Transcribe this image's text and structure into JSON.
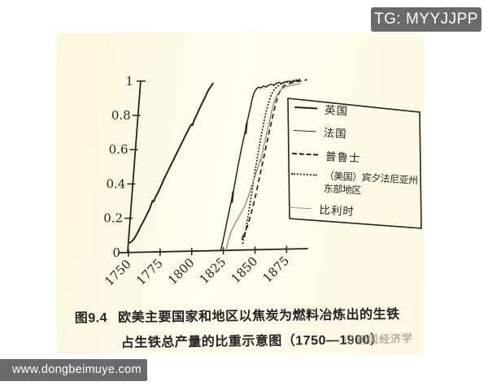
{
  "badge": {
    "text": "TG: MYYJJPP"
  },
  "footer": {
    "url": "www.dongbeimuye.com"
  },
  "watermark": {
    "text": "初闻经济学"
  },
  "caption": {
    "figure_label": "图9.4",
    "line1": "欧美主要国家和地区以焦炭为燃料冶炼出的生铁",
    "line2": "占生铁总产量的比重示意图（1750—1900）"
  },
  "chart_data": {
    "type": "line",
    "title": "图9.4 欧美主要国家和地区以焦炭为燃料冶炼出的生铁占生铁总产量的比重示意图（1750—1900）",
    "xlabel": "",
    "ylabel": "",
    "xlim": [
      1750,
      1895
    ],
    "ylim": [
      0,
      1
    ],
    "grid": false,
    "legend_position": "right",
    "x_ticks": [
      1750,
      1775,
      1800,
      1825,
      1850,
      1875
    ],
    "y_ticks": [
      0,
      0.2,
      0.4,
      0.6,
      0.8,
      1
    ],
    "series": [
      {
        "name": "英国",
        "style": "solid-thick",
        "points": [
          [
            1750,
            0.055
          ],
          [
            1752,
            0.065
          ],
          [
            1754,
            0.085
          ],
          [
            1756,
            0.115
          ],
          [
            1758,
            0.15
          ],
          [
            1760,
            0.18
          ],
          [
            1762,
            0.215
          ],
          [
            1764,
            0.25
          ],
          [
            1765,
            0.275
          ],
          [
            1766,
            0.3
          ],
          [
            1767,
            0.295
          ],
          [
            1768,
            0.32
          ],
          [
            1770,
            0.35
          ],
          [
            1772,
            0.39
          ],
          [
            1774,
            0.43
          ],
          [
            1776,
            0.465
          ],
          [
            1778,
            0.5
          ],
          [
            1780,
            0.535
          ],
          [
            1782,
            0.57
          ],
          [
            1784,
            0.605
          ],
          [
            1786,
            0.64
          ],
          [
            1788,
            0.675
          ],
          [
            1790,
            0.71
          ],
          [
            1792,
            0.74
          ],
          [
            1793,
            0.735
          ],
          [
            1794,
            0.765
          ],
          [
            1796,
            0.8
          ],
          [
            1798,
            0.84
          ],
          [
            1800,
            0.875
          ],
          [
            1802,
            0.91
          ],
          [
            1803,
            0.93
          ],
          [
            1804,
            0.945
          ],
          [
            1805,
            0.955
          ],
          [
            1806,
            0.97
          ],
          [
            1807,
            0.98
          ]
        ]
      },
      {
        "name": "法国",
        "style": "solid",
        "points": [
          [
            1823,
            0
          ],
          [
            1824,
            0.05
          ],
          [
            1825,
            0.1
          ],
          [
            1826,
            0.16
          ],
          [
            1827,
            0.22
          ],
          [
            1828,
            0.27
          ],
          [
            1828.6,
            0.3
          ],
          [
            1828.9,
            0.34
          ],
          [
            1829.2,
            0.28
          ],
          [
            1829.5,
            0.35
          ],
          [
            1830.5,
            0.42
          ],
          [
            1831.5,
            0.49
          ],
          [
            1832.5,
            0.55
          ],
          [
            1833.5,
            0.61
          ],
          [
            1834.5,
            0.66
          ],
          [
            1835.3,
            0.7
          ],
          [
            1835.6,
            0.74
          ],
          [
            1835.9,
            0.68
          ],
          [
            1836.2,
            0.75
          ],
          [
            1837,
            0.79
          ],
          [
            1838,
            0.84
          ],
          [
            1839,
            0.89
          ],
          [
            1840,
            0.92
          ],
          [
            1841.5,
            0.94
          ],
          [
            1843,
            0.95
          ],
          [
            1845,
            0.945
          ],
          [
            1847,
            0.955
          ],
          [
            1849,
            0.95
          ],
          [
            1851,
            0.96
          ],
          [
            1853,
            0.965
          ],
          [
            1855,
            0.958
          ],
          [
            1857,
            0.97
          ],
          [
            1859,
            0.975
          ],
          [
            1861,
            0.968
          ],
          [
            1863,
            0.975
          ],
          [
            1866,
            0.98
          ],
          [
            1869,
            0.976
          ],
          [
            1872,
            0.982
          ],
          [
            1875,
            0.985
          ]
        ]
      },
      {
        "name": "普鲁士",
        "style": "dashed",
        "points": [
          [
            1839,
            0.06
          ],
          [
            1840,
            0.09
          ],
          [
            1840.5,
            0.075
          ],
          [
            1841.5,
            0.11
          ],
          [
            1843,
            0.15
          ],
          [
            1844.5,
            0.2
          ],
          [
            1846,
            0.26
          ],
          [
            1847.5,
            0.33
          ],
          [
            1849,
            0.41
          ],
          [
            1850.5,
            0.49
          ],
          [
            1852,
            0.57
          ],
          [
            1853.5,
            0.65
          ],
          [
            1855,
            0.73
          ],
          [
            1856.5,
            0.8
          ],
          [
            1858,
            0.865
          ],
          [
            1859.5,
            0.91
          ],
          [
            1861,
            0.935
          ],
          [
            1863,
            0.955
          ],
          [
            1866,
            0.965
          ],
          [
            1870,
            0.972
          ],
          [
            1874,
            0.978
          ],
          [
            1878,
            0.983
          ],
          [
            1881,
            0.987
          ]
        ]
      },
      {
        "name": "（美国）宾夕法尼亚州",
        "name2": "东部地区",
        "style": "dotted",
        "points": [
          [
            1840,
            0.04
          ],
          [
            1840.6,
            0.1
          ],
          [
            1841,
            0.075
          ],
          [
            1841.8,
            0.14
          ],
          [
            1842.6,
            0.21
          ],
          [
            1843.5,
            0.29
          ],
          [
            1844.5,
            0.38
          ],
          [
            1845.5,
            0.47
          ],
          [
            1846.5,
            0.55
          ],
          [
            1847.5,
            0.625
          ],
          [
            1848.5,
            0.69
          ],
          [
            1849.5,
            0.75
          ],
          [
            1850.7,
            0.81
          ],
          [
            1852,
            0.86
          ],
          [
            1853.5,
            0.9
          ],
          [
            1855,
            0.925
          ],
          [
            1857,
            0.945
          ],
          [
            1859.5,
            0.96
          ],
          [
            1862,
            0.97
          ],
          [
            1865,
            0.975
          ],
          [
            1869,
            0.982
          ],
          [
            1873,
            0.988
          ],
          [
            1877,
            0.992
          ]
        ]
      },
      {
        "name": "比利时",
        "style": "solid-light",
        "points": [
          [
            1827,
            0
          ],
          [
            1828.5,
            0.06
          ],
          [
            1830,
            0.11
          ],
          [
            1832,
            0.145
          ],
          [
            1834,
            0.175
          ],
          [
            1836,
            0.205
          ],
          [
            1838,
            0.235
          ],
          [
            1839.5,
            0.26
          ],
          [
            1841,
            0.3
          ],
          [
            1842.5,
            0.34
          ],
          [
            1844,
            0.385
          ],
          [
            1845.5,
            0.425
          ],
          [
            1847,
            0.47
          ],
          [
            1848,
            0.5
          ],
          [
            1848.8,
            0.53
          ],
          [
            1849.2,
            0.515
          ],
          [
            1850,
            0.56
          ],
          [
            1851,
            0.615
          ],
          [
            1852,
            0.665
          ],
          [
            1853,
            0.71
          ],
          [
            1854,
            0.76
          ],
          [
            1855,
            0.81
          ],
          [
            1856,
            0.85
          ],
          [
            1857,
            0.88
          ],
          [
            1858.5,
            0.905
          ],
          [
            1860,
            0.925
          ],
          [
            1862,
            0.94
          ],
          [
            1865,
            0.95
          ],
          [
            1868,
            0.955
          ],
          [
            1872,
            0.96
          ],
          [
            1876,
            0.965
          ]
        ]
      }
    ]
  }
}
